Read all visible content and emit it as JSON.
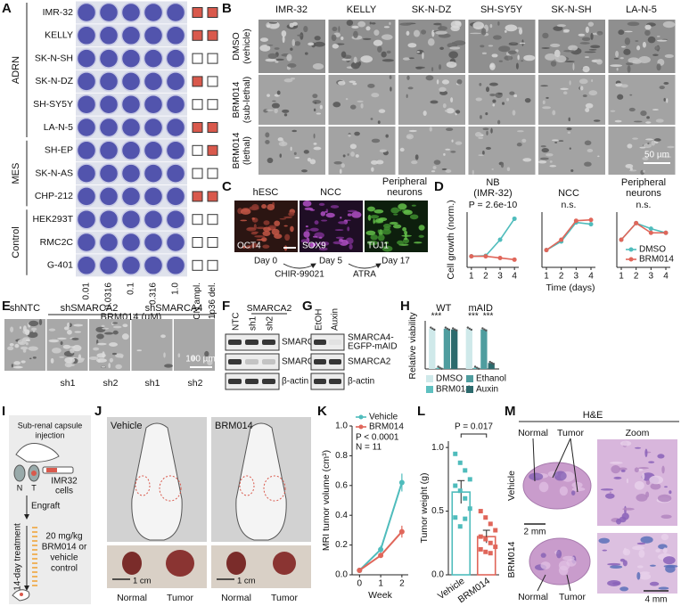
{
  "panels": {
    "A": {
      "letter": "A",
      "groups": [
        {
          "label": "ADRN",
          "cell_lines": [
            {
              "name": "IMR-32",
              "mycn_ampl": true,
              "del_1p36": true
            },
            {
              "name": "KELLY",
              "mycn_ampl": true,
              "del_1p36": true
            },
            {
              "name": "SK-N-SH",
              "mycn_ampl": false,
              "del_1p36": false
            },
            {
              "name": "SK-N-DZ",
              "mycn_ampl": true,
              "del_1p36": false
            },
            {
              "name": "SH-SY5Y",
              "mycn_ampl": false,
              "del_1p36": false
            },
            {
              "name": "LA-N-5",
              "mycn_ampl": true,
              "del_1p36": true
            }
          ]
        },
        {
          "label": "MES",
          "cell_lines": [
            {
              "name": "SH-EP",
              "mycn_ampl": false,
              "del_1p36": true
            },
            {
              "name": "SK-N-AS",
              "mycn_ampl": false,
              "del_1p36": false
            },
            {
              "name": "CHP-212",
              "mycn_ampl": true,
              "del_1p36": true
            }
          ]
        },
        {
          "label": "Control",
          "cell_lines": [
            {
              "name": "HEK293T",
              "mycn_ampl": false,
              "del_1p36": false
            },
            {
              "name": "RMC2C",
              "mycn_ampl": false,
              "del_1p36": false
            },
            {
              "name": "G-401",
              "mycn_ampl": false,
              "del_1p36": false
            }
          ]
        }
      ],
      "concentrations": [
        "0.01",
        "0.0316",
        "0.1",
        "0.316",
        "1.0"
      ],
      "x_label": "BRM014 (µM)",
      "flag_labels": [
        "MYCN ampl.",
        "1p36 del."
      ]
    },
    "B": {
      "letter": "B",
      "cell_lines": [
        "IMR-32",
        "KELLY",
        "SK-N-DZ",
        "SH-SY5Y",
        "SK-N-SH",
        "LA-N-5"
      ],
      "conditions": [
        [
          "DMSO",
          "(vehicle)"
        ],
        [
          "BRM014",
          "(sub-lethal)"
        ],
        [
          "BRM014",
          "(lethal)"
        ]
      ],
      "scale_bar": "50 µm"
    },
    "C": {
      "letter": "C",
      "stages": [
        {
          "title": [
            "hESC"
          ],
          "marker": "OCT4",
          "day": "Day 0"
        },
        {
          "title": [
            "NCC"
          ],
          "marker": "SOX9",
          "day": "Day 5"
        },
        {
          "title": [
            "Peripheral",
            "neurons"
          ],
          "marker": "TUJ1",
          "day": "Day 17"
        }
      ],
      "treatments": [
        "CHIR-99021",
        "ATRA"
      ]
    },
    "D": {
      "letter": "D",
      "y_label": "Cell growth (norm.)",
      "x_label": "Time (days)",
      "series": [
        {
          "name": "DMSO",
          "color": "#4fbcbc"
        },
        {
          "name": "BRM014",
          "color": "#e0665a"
        }
      ],
      "legend": "lower right",
      "charts": [
        {
          "type": "line",
          "title": [
            "NB",
            "(IMR-32)"
          ],
          "annotation": "P = 2.6e-10",
          "x": [
            1,
            2,
            3,
            4
          ],
          "xticks": [
            1,
            2,
            3,
            4
          ],
          "xlim": [
            0.7,
            4.3
          ],
          "ylim": [
            0,
            5
          ],
          "values": [
            [
              1,
              1.05,
              2.5,
              4.4
            ],
            [
              1,
              1.0,
              0.85,
              0.7
            ]
          ]
        },
        {
          "type": "line",
          "title": [
            "NCC"
          ],
          "annotation": "n.s.",
          "x": [
            1,
            2,
            3,
            4
          ],
          "xticks": [
            1,
            2,
            3,
            4
          ],
          "xlim": [
            0.7,
            4.3
          ],
          "ylim": [
            0,
            3.2
          ],
          "values": [
            [
              1,
              1.5,
              2.6,
              2.5
            ],
            [
              1,
              1.6,
              2.7,
              2.75
            ]
          ]
        },
        {
          "type": "line",
          "title": [
            "Peripheral",
            "neurons"
          ],
          "annotation": "n.s.",
          "x": [
            1,
            2,
            3,
            4
          ],
          "xticks": [
            1,
            2,
            3,
            4
          ],
          "xlim": [
            0.7,
            4.3
          ],
          "ylim": [
            0,
            2
          ],
          "values": [
            [
              1,
              1.6,
              1.4,
              1.25
            ],
            [
              1,
              1.6,
              1.25,
              1.25
            ]
          ]
        }
      ]
    },
    "E": {
      "letter": "E",
      "groups": [
        {
          "label": "shNTC",
          "subs": []
        },
        {
          "label": "shSMARCA2",
          "subs": [
            "sh1",
            "sh2"
          ]
        },
        {
          "label": "shSMARCA4",
          "subs": [
            "sh1",
            "sh2"
          ]
        }
      ],
      "scale_bar": "100 µm"
    },
    "F": {
      "letter": "F",
      "header": "SMARCA2",
      "lanes": [
        "NTC",
        "sh1",
        "sh2"
      ],
      "bands": [
        "SMARCA4",
        "SMARCA2",
        "β-actin"
      ]
    },
    "G": {
      "letter": "G",
      "lanes": [
        "EtOH",
        "Auxin"
      ],
      "bands": [
        [
          "SMARCA4-",
          "EGFP-mAID"
        ],
        [
          "SMARCA2"
        ],
        [
          "β-actin"
        ]
      ]
    },
    "H": {
      "letter": "H",
      "type": "bar",
      "y_label": "Relative viability",
      "categories": [
        "WT",
        "mAID"
      ],
      "ylim": [
        0,
        1.15
      ],
      "series": [
        {
          "name": "DMSO",
          "color": "#cfe9ea",
          "values": [
            1.0,
            1.0
          ]
        },
        {
          "name": "BRM014",
          "color": "#5ec0c0",
          "values": [
            0.03,
            0.03
          ]
        },
        {
          "name": "Ethanol",
          "color": "#4f9d9f",
          "values": [
            1.0,
            0.98
          ]
        },
        {
          "name": "Auxin",
          "color": "#2c6a6d",
          "values": [
            0.98,
            0.15
          ]
        }
      ],
      "significance": [
        [
          "***"
        ],
        [
          "***",
          "***"
        ]
      ]
    },
    "I": {
      "letter": "I",
      "injection": [
        "Sub-renal capsule",
        "injection"
      ],
      "kidney_labels": [
        "N",
        "T"
      ],
      "cells": [
        "IMR32",
        "cells"
      ],
      "engraft": "Engraft",
      "treatment_period": "14-day treatment",
      "treatment": [
        "20 mg/kg",
        "BRM014 or",
        "vehicle",
        "control"
      ]
    },
    "J": {
      "letter": "J",
      "groups": [
        "Vehicle",
        "BRM014"
      ],
      "scale_bar": "1 cm",
      "tissues": [
        "Normal",
        "Tumor"
      ]
    },
    "K": {
      "letter": "K",
      "type": "line",
      "y_label": "MRI tumor volume (cm³)",
      "x_label": "Week",
      "x": [
        0,
        1,
        2
      ],
      "xticks": [
        0,
        1,
        2
      ],
      "xlim": [
        -0.35,
        2.3
      ],
      "ylim": [
        0,
        1.0
      ],
      "yticks": [
        {
          "value": 0,
          "label": "0.0"
        },
        0.2,
        0.4,
        0.6,
        0.8,
        {
          "value": 1,
          "label": "1.0"
        }
      ],
      "annotations": [
        "P < 0.0001",
        "N = 11"
      ],
      "legend": "upper left",
      "series": [
        {
          "name": "Vehicle",
          "color": "#4fbcbc",
          "values": [
            0.03,
            0.17,
            0.62
          ],
          "errors": [
            0.005,
            0.025,
            0.06
          ]
        },
        {
          "name": "BRM014",
          "color": "#e0665a",
          "values": [
            0.03,
            0.13,
            0.29
          ],
          "errors": [
            0.005,
            0.015,
            0.04
          ]
        }
      ]
    },
    "L": {
      "letter": "L",
      "type": "bar",
      "y_label": "Tumor weight (g)",
      "annotation": "P = 0.017",
      "categories": [
        "Vehicle",
        "BRM014"
      ],
      "colors": [
        "#4fbcbc",
        "#e0665a"
      ],
      "values": [
        0.65,
        0.3
      ],
      "errors": [
        0.09,
        0.05
      ],
      "points": [
        [
          0.95,
          0.88,
          0.82,
          0.75,
          0.7,
          0.66,
          0.6,
          0.52,
          0.45,
          0.38,
          0.44
        ],
        [
          0.5,
          0.45,
          0.4,
          0.35,
          0.3,
          0.28,
          0.25,
          0.22,
          0.2,
          0.18,
          0.17
        ]
      ],
      "ylim": [
        0,
        1.05
      ],
      "yticks": [
        {
          "value": 0,
          "label": "0.0"
        },
        0.5,
        {
          "value": 1,
          "label": "1.0"
        }
      ]
    },
    "M": {
      "letter": "M",
      "title": "H&E",
      "zoom": "Zoom",
      "groups": [
        "Vehicle",
        "BRM014"
      ],
      "labels": [
        "Normal",
        "Tumor"
      ],
      "scale_bars": [
        "2 mm",
        "4 mm"
      ]
    }
  }
}
